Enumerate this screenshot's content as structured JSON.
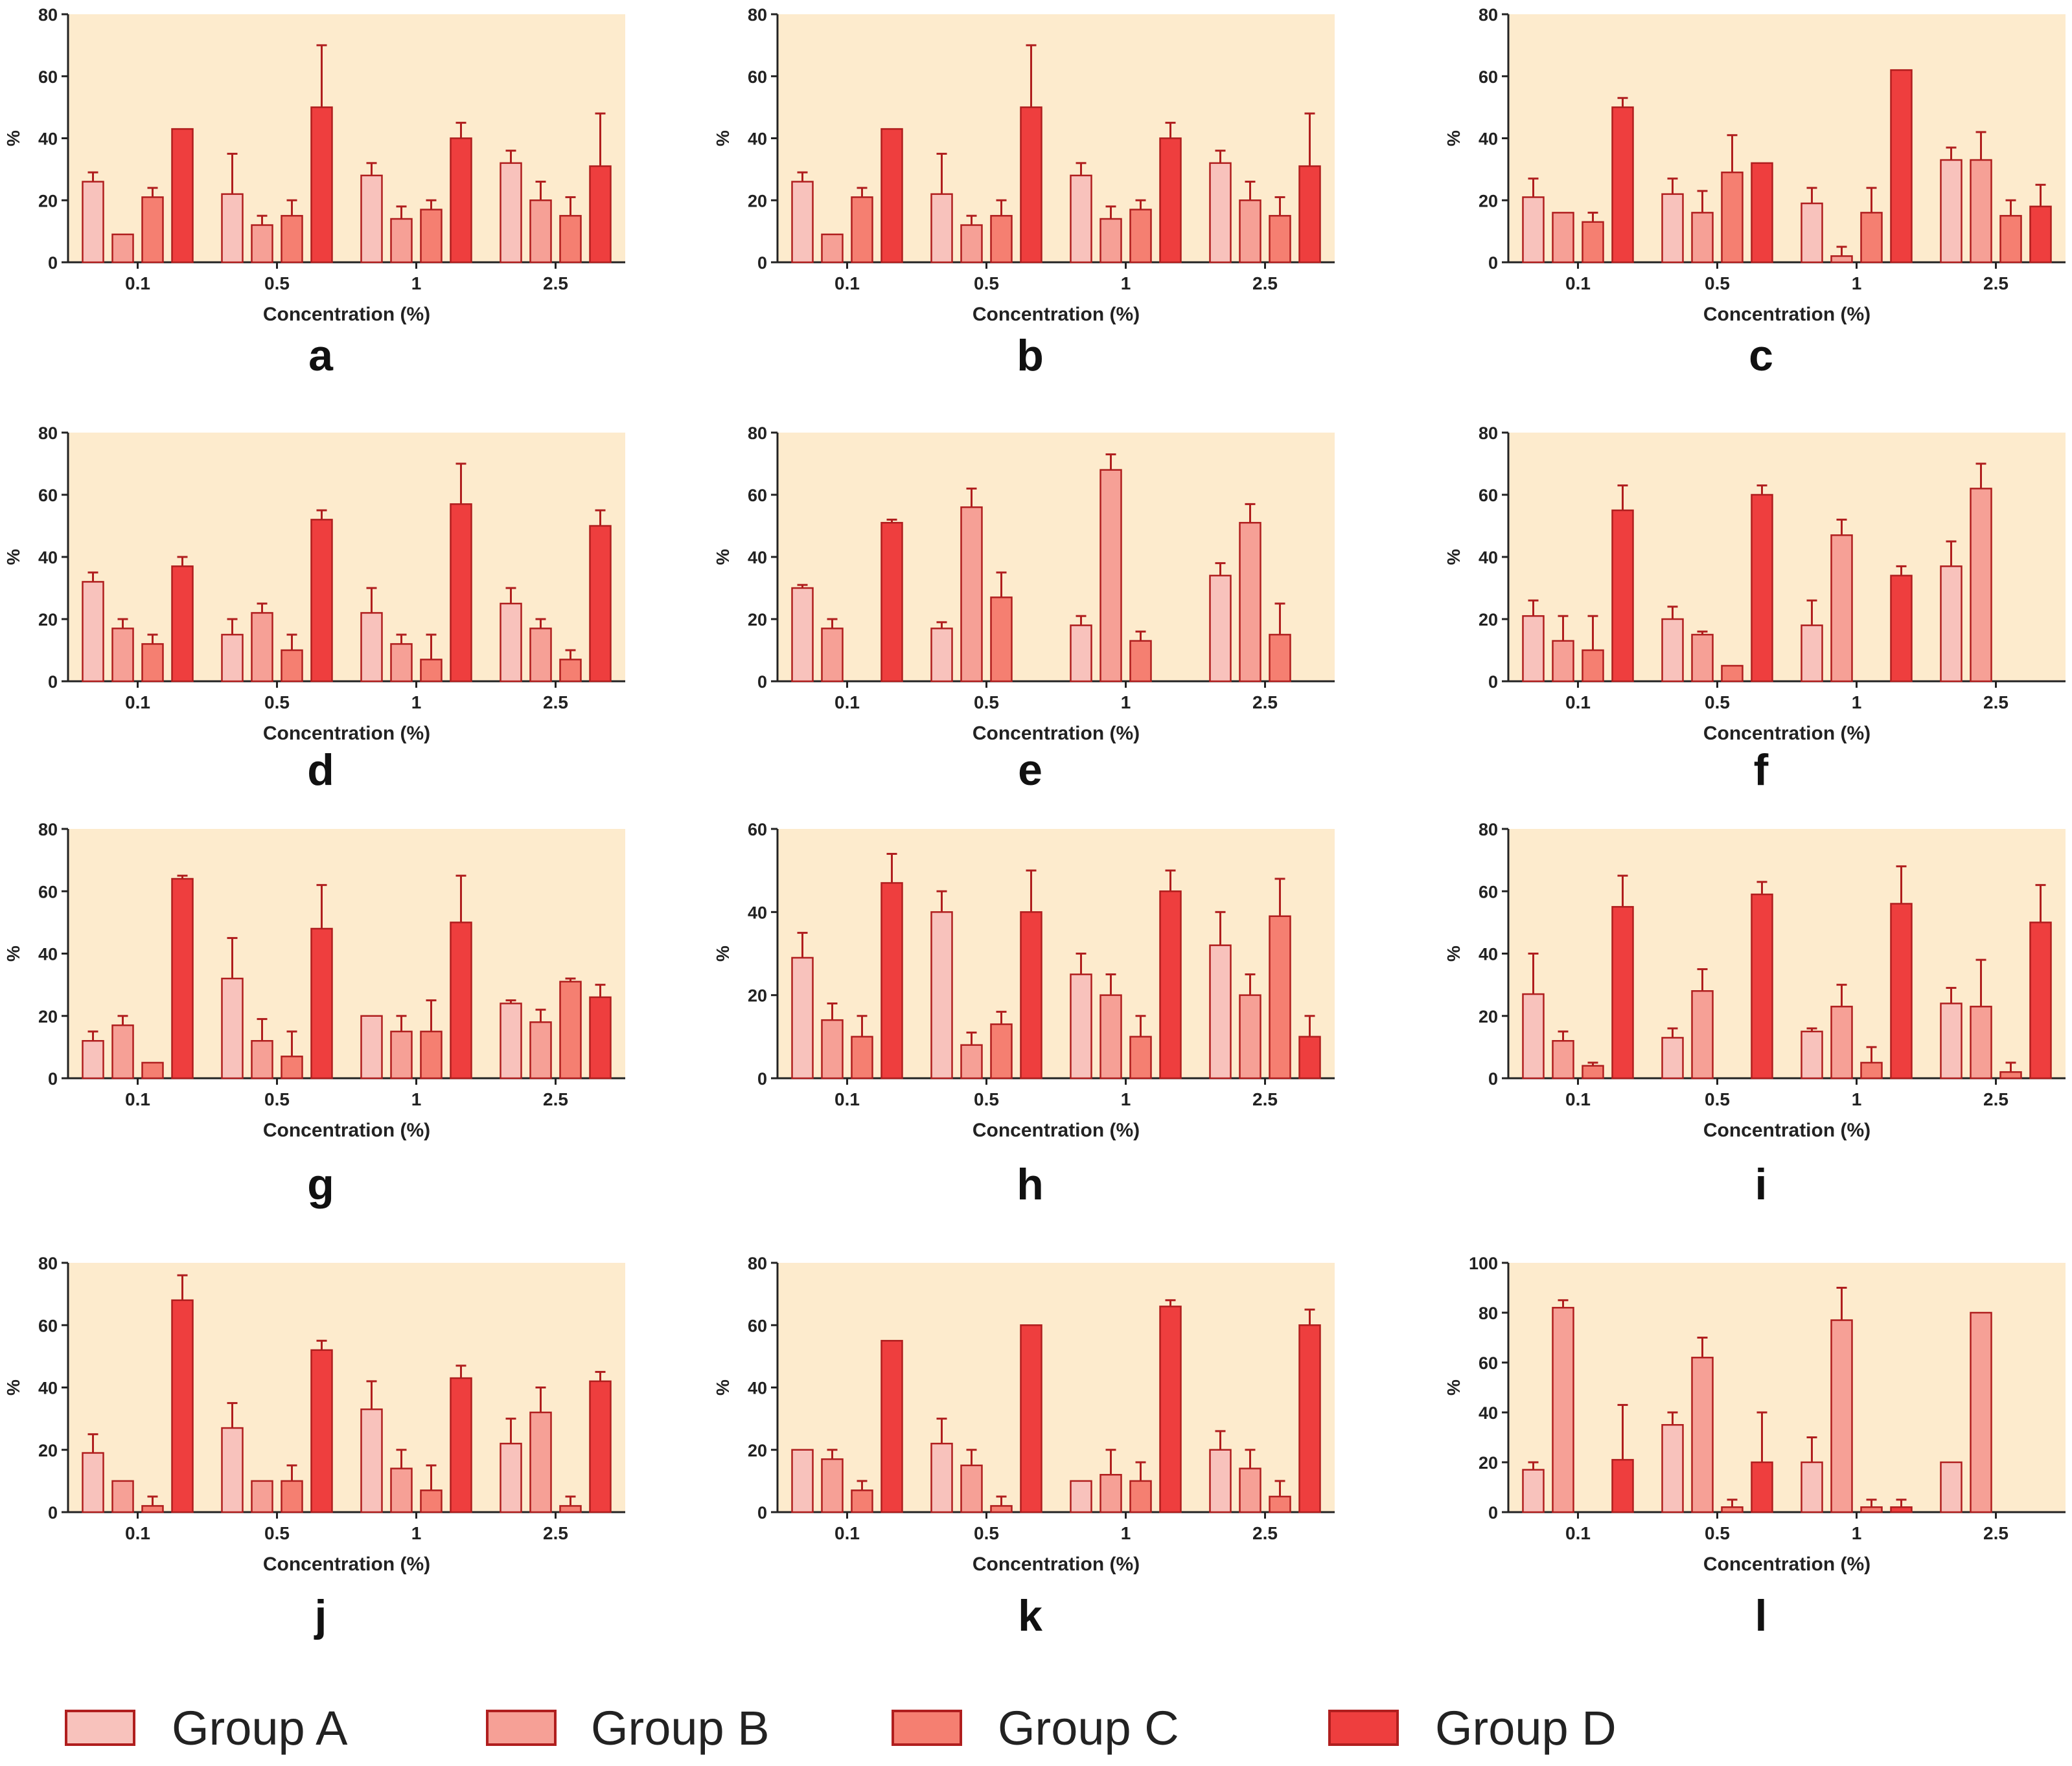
{
  "colors": {
    "plot_bg": "#FDEBCD",
    "axis": "#222222",
    "edge": "#B01E1E",
    "groups": [
      "#F8C2BC",
      "#F6A096",
      "#F57F71",
      "#EE3E3E"
    ]
  },
  "legend": {
    "items": [
      "Group A",
      "Group B",
      "Group C",
      "Group D"
    ]
  },
  "chart_data": [
    {
      "panel": "a",
      "type": "bar",
      "categories": [
        "0.1",
        "0.5",
        "1",
        "2.5"
      ],
      "xlabel": "Concentration (%)",
      "ylabel": "%",
      "ylim": [
        0,
        80
      ],
      "yticks": [
        0,
        20,
        40,
        60,
        80
      ],
      "series": [
        {
          "name": "Group A",
          "values": [
            26,
            22,
            28,
            32
          ],
          "errors": [
            3,
            13,
            4,
            4
          ]
        },
        {
          "name": "Group B",
          "values": [
            9,
            12,
            14,
            20
          ],
          "errors": [
            0,
            3,
            4,
            6
          ]
        },
        {
          "name": "Group C",
          "values": [
            21,
            15,
            17,
            15
          ],
          "errors": [
            3,
            5,
            3,
            6
          ]
        },
        {
          "name": "Group D",
          "values": [
            43,
            50,
            40,
            31
          ],
          "errors": [
            0,
            20,
            5,
            17
          ]
        }
      ]
    },
    {
      "panel": "b",
      "type": "bar",
      "categories": [
        "0.1",
        "0.5",
        "1",
        "2.5"
      ],
      "xlabel": "Concentration (%)",
      "ylabel": "%",
      "ylim": [
        0,
        80
      ],
      "yticks": [
        0,
        20,
        40,
        60,
        80
      ],
      "series": [
        {
          "name": "Group A",
          "values": [
            26,
            22,
            28,
            32
          ],
          "errors": [
            3,
            13,
            4,
            4
          ]
        },
        {
          "name": "Group B",
          "values": [
            9,
            12,
            14,
            20
          ],
          "errors": [
            0,
            3,
            4,
            6
          ]
        },
        {
          "name": "Group C",
          "values": [
            21,
            15,
            17,
            15
          ],
          "errors": [
            3,
            5,
            3,
            6
          ]
        },
        {
          "name": "Group D",
          "values": [
            43,
            50,
            40,
            31
          ],
          "errors": [
            0,
            20,
            5,
            17
          ]
        }
      ]
    },
    {
      "panel": "c",
      "type": "bar",
      "categories": [
        "0.1",
        "0.5",
        "1",
        "2.5"
      ],
      "xlabel": "Concentration (%)",
      "ylabel": "%",
      "ylim": [
        0,
        80
      ],
      "yticks": [
        0,
        20,
        40,
        60,
        80
      ],
      "series": [
        {
          "name": "Group A",
          "values": [
            21,
            22,
            19,
            33
          ],
          "errors": [
            6,
            5,
            5,
            4
          ]
        },
        {
          "name": "Group B",
          "values": [
            16,
            16,
            2,
            33
          ],
          "errors": [
            0,
            7,
            3,
            9
          ]
        },
        {
          "name": "Group C",
          "values": [
            13,
            29,
            16,
            15
          ],
          "errors": [
            3,
            12,
            8,
            5
          ]
        },
        {
          "name": "Group D",
          "values": [
            50,
            32,
            62,
            18
          ],
          "errors": [
            3,
            0,
            0,
            7
          ]
        }
      ]
    },
    {
      "panel": "d",
      "type": "bar",
      "categories": [
        "0.1",
        "0.5",
        "1",
        "2.5"
      ],
      "xlabel": "Concentration (%)",
      "ylabel": "%",
      "ylim": [
        0,
        80
      ],
      "yticks": [
        0,
        20,
        40,
        60,
        80
      ],
      "series": [
        {
          "name": "Group A",
          "values": [
            32,
            15,
            22,
            25
          ],
          "errors": [
            3,
            5,
            8,
            5
          ]
        },
        {
          "name": "Group B",
          "values": [
            17,
            22,
            12,
            17
          ],
          "errors": [
            3,
            3,
            3,
            3
          ]
        },
        {
          "name": "Group C",
          "values": [
            12,
            10,
            7,
            7
          ],
          "errors": [
            3,
            5,
            8,
            3
          ]
        },
        {
          "name": "Group D",
          "values": [
            37,
            52,
            57,
            50
          ],
          "errors": [
            3,
            3,
            13,
            5
          ]
        }
      ]
    },
    {
      "panel": "e",
      "type": "bar",
      "categories": [
        "0.1",
        "0.5",
        "1",
        "2.5"
      ],
      "xlabel": "Concentration (%)",
      "ylabel": "%",
      "ylim": [
        0,
        80
      ],
      "yticks": [
        0,
        20,
        40,
        60,
        80
      ],
      "series": [
        {
          "name": "Group A",
          "values": [
            30,
            17,
            18,
            34
          ],
          "errors": [
            1,
            2,
            3,
            4
          ]
        },
        {
          "name": "Group B",
          "values": [
            17,
            56,
            68,
            51
          ],
          "errors": [
            3,
            6,
            5,
            6
          ]
        },
        {
          "name": "Group C",
          "values": [
            0,
            27,
            13,
            15
          ],
          "errors": [
            0,
            8,
            3,
            10
          ]
        },
        {
          "name": "Group D",
          "values": [
            51,
            0,
            0,
            0
          ],
          "errors": [
            1,
            0,
            0,
            0
          ]
        }
      ]
    },
    {
      "panel": "f",
      "type": "bar",
      "categories": [
        "0.1",
        "0.5",
        "1",
        "2.5"
      ],
      "xlabel": "Concentration (%)",
      "ylabel": "%",
      "ylim": [
        0,
        80
      ],
      "yticks": [
        0,
        20,
        40,
        60,
        80
      ],
      "series": [
        {
          "name": "Group A",
          "values": [
            21,
            20,
            18,
            37
          ],
          "errors": [
            5,
            4,
            8,
            8
          ]
        },
        {
          "name": "Group B",
          "values": [
            13,
            15,
            47,
            62
          ],
          "errors": [
            8,
            1,
            5,
            8
          ]
        },
        {
          "name": "Group C",
          "values": [
            10,
            5,
            0,
            0
          ],
          "errors": [
            11,
            0,
            0,
            0
          ]
        },
        {
          "name": "Group D",
          "values": [
            55,
            60,
            34,
            0
          ],
          "errors": [
            8,
            3,
            3,
            0
          ]
        }
      ]
    },
    {
      "panel": "g",
      "type": "bar",
      "categories": [
        "0.1",
        "0.5",
        "1",
        "2.5"
      ],
      "xlabel": "Concentration (%)",
      "ylabel": "%",
      "ylim": [
        0,
        80
      ],
      "yticks": [
        0,
        20,
        40,
        60,
        80
      ],
      "series": [
        {
          "name": "Group A",
          "values": [
            12,
            32,
            20,
            24
          ],
          "errors": [
            3,
            13,
            0,
            1
          ]
        },
        {
          "name": "Group B",
          "values": [
            17,
            12,
            15,
            18
          ],
          "errors": [
            3,
            7,
            5,
            4
          ]
        },
        {
          "name": "Group C",
          "values": [
            5,
            7,
            15,
            31
          ],
          "errors": [
            0,
            8,
            10,
            1
          ]
        },
        {
          "name": "Group D",
          "values": [
            64,
            48,
            50,
            26
          ],
          "errors": [
            1,
            14,
            15,
            4
          ]
        }
      ]
    },
    {
      "panel": "h",
      "type": "bar",
      "categories": [
        "0.1",
        "0.5",
        "1",
        "2.5"
      ],
      "xlabel": "Concentration (%)",
      "ylabel": "%",
      "ylim": [
        0,
        60
      ],
      "yticks": [
        0,
        20,
        40,
        60
      ],
      "series": [
        {
          "name": "Group A",
          "values": [
            29,
            40,
            25,
            32
          ],
          "errors": [
            6,
            5,
            5,
            8
          ]
        },
        {
          "name": "Group B",
          "values": [
            14,
            8,
            20,
            20
          ],
          "errors": [
            4,
            3,
            5,
            5
          ]
        },
        {
          "name": "Group C",
          "values": [
            10,
            13,
            10,
            39
          ],
          "errors": [
            5,
            3,
            5,
            9
          ]
        },
        {
          "name": "Group D",
          "values": [
            47,
            40,
            45,
            10
          ],
          "errors": [
            7,
            10,
            5,
            5
          ]
        }
      ]
    },
    {
      "panel": "i",
      "type": "bar",
      "categories": [
        "0.1",
        "0.5",
        "1",
        "2.5"
      ],
      "xlabel": "Concentration (%)",
      "ylabel": "%",
      "ylim": [
        0,
        80
      ],
      "yticks": [
        0,
        20,
        40,
        60,
        80
      ],
      "series": [
        {
          "name": "Group A",
          "values": [
            27,
            13,
            15,
            24
          ],
          "errors": [
            13,
            3,
            1,
            5
          ]
        },
        {
          "name": "Group B",
          "values": [
            12,
            28,
            23,
            23
          ],
          "errors": [
            3,
            7,
            7,
            15
          ]
        },
        {
          "name": "Group C",
          "values": [
            4,
            0,
            5,
            2
          ],
          "errors": [
            1,
            0,
            5,
            3
          ]
        },
        {
          "name": "Group D",
          "values": [
            55,
            59,
            56,
            50
          ],
          "errors": [
            10,
            4,
            12,
            12
          ]
        }
      ]
    },
    {
      "panel": "j",
      "type": "bar",
      "categories": [
        "0.1",
        "0.5",
        "1",
        "2.5"
      ],
      "xlabel": "Concentration (%)",
      "ylabel": "%",
      "ylim": [
        0,
        80
      ],
      "yticks": [
        0,
        20,
        40,
        60,
        80
      ],
      "series": [
        {
          "name": "Group A",
          "values": [
            19,
            27,
            33,
            22
          ],
          "errors": [
            6,
            8,
            9,
            8
          ]
        },
        {
          "name": "Group B",
          "values": [
            10,
            10,
            14,
            32
          ],
          "errors": [
            0,
            0,
            6,
            8
          ]
        },
        {
          "name": "Group C",
          "values": [
            2,
            10,
            7,
            2
          ],
          "errors": [
            3,
            5,
            8,
            3
          ]
        },
        {
          "name": "Group D",
          "values": [
            68,
            52,
            43,
            42
          ],
          "errors": [
            8,
            3,
            4,
            3
          ]
        }
      ]
    },
    {
      "panel": "k",
      "type": "bar",
      "categories": [
        "0.1",
        "0.5",
        "1",
        "2.5"
      ],
      "xlabel": "Concentration (%)",
      "ylabel": "%",
      "ylim": [
        0,
        80
      ],
      "yticks": [
        0,
        20,
        40,
        60,
        80
      ],
      "series": [
        {
          "name": "Group A",
          "values": [
            20,
            22,
            10,
            20
          ],
          "errors": [
            0,
            8,
            0,
            6
          ]
        },
        {
          "name": "Group B",
          "values": [
            17,
            15,
            12,
            14
          ],
          "errors": [
            3,
            5,
            8,
            6
          ]
        },
        {
          "name": "Group C",
          "values": [
            7,
            2,
            10,
            5
          ],
          "errors": [
            3,
            3,
            6,
            5
          ]
        },
        {
          "name": "Group D",
          "values": [
            55,
            60,
            66,
            60
          ],
          "errors": [
            0,
            0,
            2,
            5
          ]
        }
      ]
    },
    {
      "panel": "l",
      "type": "bar",
      "categories": [
        "0.1",
        "0.5",
        "1",
        "2.5"
      ],
      "xlabel": "Concentration (%)",
      "ylabel": "%",
      "ylim": [
        0,
        100
      ],
      "yticks": [
        0,
        20,
        40,
        60,
        80,
        100
      ],
      "series": [
        {
          "name": "Group A",
          "values": [
            17,
            35,
            20,
            20
          ],
          "errors": [
            3,
            5,
            10,
            0
          ]
        },
        {
          "name": "Group B",
          "values": [
            82,
            62,
            77,
            80
          ],
          "errors": [
            3,
            8,
            13,
            0
          ]
        },
        {
          "name": "Group C",
          "values": [
            0,
            2,
            2,
            0
          ],
          "errors": [
            0,
            3,
            3,
            0
          ]
        },
        {
          "name": "Group D",
          "values": [
            21,
            20,
            2,
            0
          ],
          "errors": [
            22,
            20,
            3,
            0
          ]
        }
      ]
    }
  ]
}
